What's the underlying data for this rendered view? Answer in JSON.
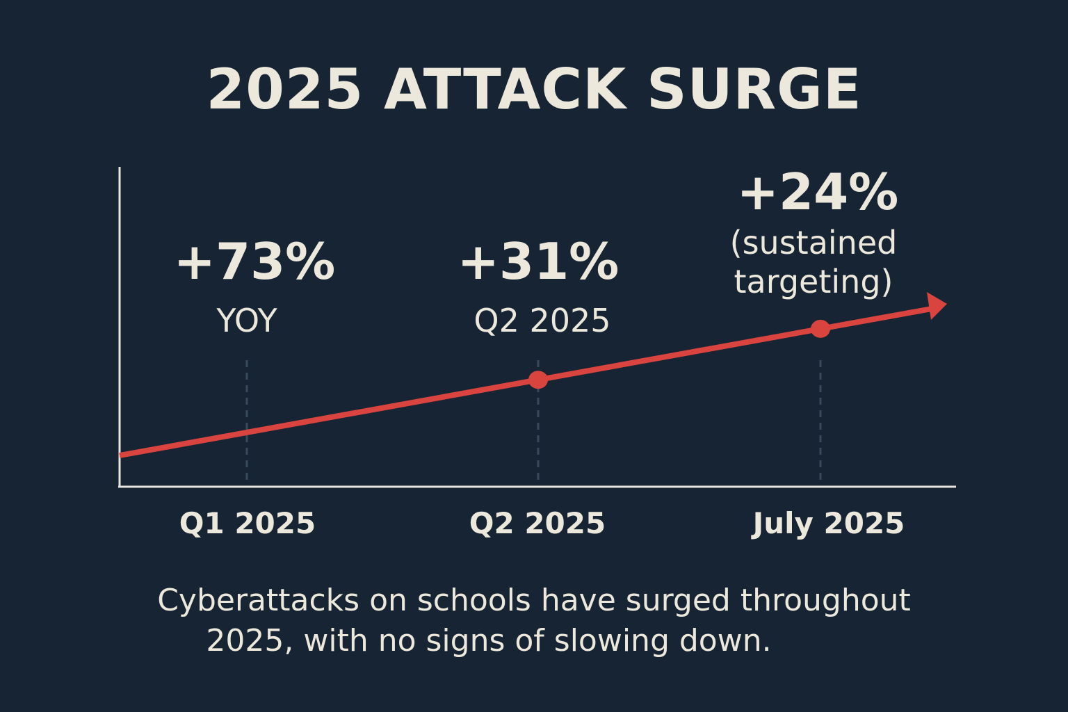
{
  "chart_data": {
    "type": "line",
    "title": "2025 ATTACK SURGE",
    "categories": [
      "Q1 2025",
      "Q2 2025",
      "July 2025"
    ],
    "annotations": [
      {
        "category": "Q1 2025",
        "value": "+73%",
        "label": "YOY"
      },
      {
        "category": "Q2 2025",
        "value": "+31%",
        "label": "Q2 2025"
      },
      {
        "category": "July 2025",
        "value": "+24%",
        "label_lines": [
          "(sustained",
          "targeting)"
        ]
      }
    ],
    "trend": "increasing",
    "grid": false,
    "y_ticks": false,
    "colors": {
      "background": "#172433",
      "line": "#d9443e",
      "text": "#ece8dc",
      "axis": "#e8e6df",
      "guide": "#3a4a5c"
    }
  },
  "caption": [
    "Cyberattacks on schools have surged throughout",
    "2025, with no signs of slowing down."
  ]
}
